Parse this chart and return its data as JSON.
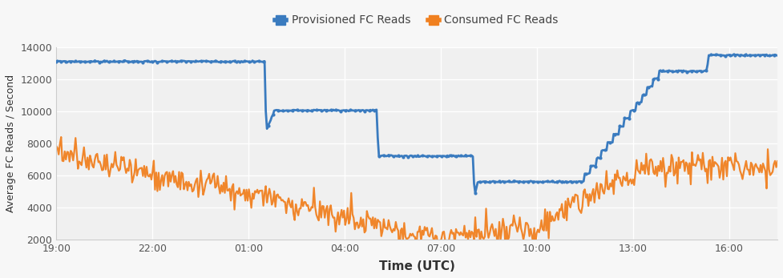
{
  "xlabel": "Time (UTC)",
  "ylabel": "Average FC Reads / Second",
  "ylim": [
    2000,
    14000
  ],
  "yticks": [
    2000,
    4000,
    6000,
    8000,
    10000,
    12000,
    14000
  ],
  "xtick_labels": [
    "19:00",
    "22:00",
    "01:00",
    "04:00",
    "07:00",
    "10:00",
    "13:00",
    "16:00"
  ],
  "xtick_positions": [
    0,
    3,
    6,
    9,
    12,
    15,
    18,
    21
  ],
  "xlim": [
    0,
    22.5
  ],
  "legend_labels": [
    "Provisioned FC Reads",
    "Consumed FC Reads"
  ],
  "provisioned_color": "#3a7bbf",
  "consumed_color": "#f08020",
  "bg_color": "#f7f7f7",
  "plot_bg_color": "#f0f0f0",
  "grid_color": "#ffffff",
  "provisioned_linewidth": 2.0,
  "consumed_linewidth": 1.6,
  "provisioned_markersize": 3.0,
  "xlabel_fontsize": 11,
  "ylabel_fontsize": 9,
  "tick_fontsize": 9,
  "legend_fontsize": 10
}
